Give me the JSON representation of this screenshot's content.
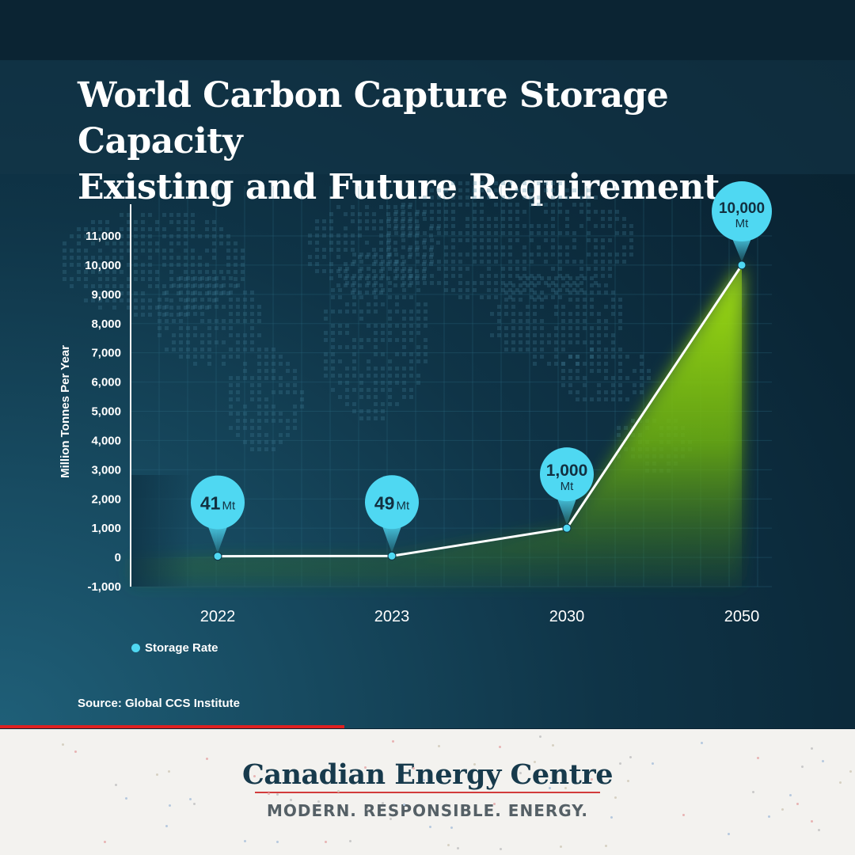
{
  "title_lines": [
    "World Carbon Capture Storage Capacity",
    "Existing and Future Requirement"
  ],
  "source": "Source: Global CCS Institute",
  "brand": "Canadian Energy Centre",
  "tagline": "MODERN. RESPONSIBLE. ENERGY.",
  "colors": {
    "point": "#4fd8f2",
    "area": "#8ccf12",
    "accent": "#e02020",
    "brand": "#173a4c"
  },
  "chart_data": {
    "type": "area",
    "categories": [
      "2022",
      "2023",
      "2030",
      "2050"
    ],
    "series": [
      {
        "name": "Storage Rate",
        "values": [
          41,
          49,
          1000,
          10000
        ]
      }
    ],
    "point_labels": [
      {
        "value": "41",
        "unit": "Mt"
      },
      {
        "value": "49",
        "unit": "Mt"
      },
      {
        "value": "1,000",
        "unit": "Mt"
      },
      {
        "value": "10,000",
        "unit": "Mt"
      }
    ],
    "ylabel": "Million Tonnes Per Year",
    "ylim": [
      -1000,
      11000
    ],
    "yticks": [
      -1000,
      0,
      1000,
      2000,
      3000,
      4000,
      5000,
      6000,
      7000,
      8000,
      9000,
      10000,
      11000
    ],
    "ytick_labels": [
      "-1,000",
      "0",
      "1,000",
      "2,000",
      "3,000",
      "4,000",
      "5,000",
      "6,000",
      "7,000",
      "8,000",
      "9,000",
      "10,000",
      "11,000"
    ],
    "legend_position": "bottom-left",
    "grid": true
  }
}
